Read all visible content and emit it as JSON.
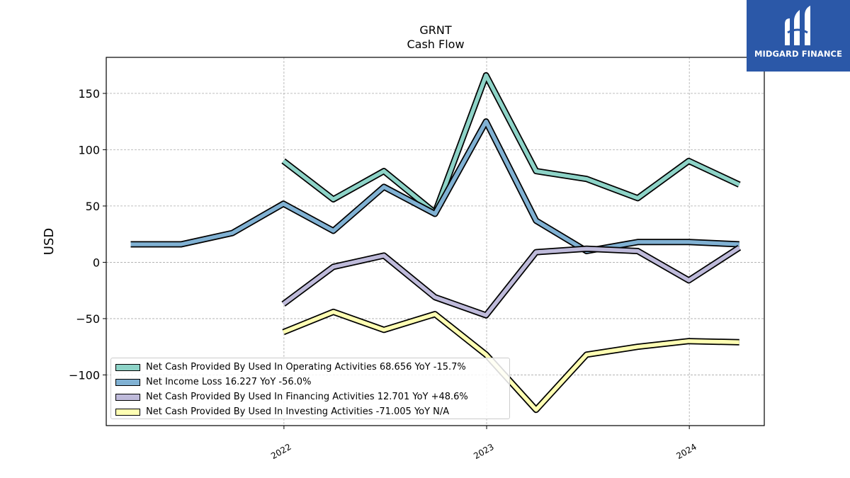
{
  "brand": {
    "logo_text": "MIDGARD FINANCE",
    "background_color": "#2b58a8",
    "icon": "midgard-logo-icon"
  },
  "chart_data": {
    "type": "line",
    "title": "GRNT",
    "subtitle": "Cash Flow",
    "xlabel": "",
    "ylabel": "USD",
    "x_ticks": [
      "2022",
      "2023",
      "2024"
    ],
    "y_ticks": [
      -100,
      -50,
      0,
      50,
      100,
      150
    ],
    "ylim": [
      -145,
      182
    ],
    "xlim": [
      "2021-02-15",
      "2024-05-15"
    ],
    "grid": true,
    "legend_position": "lower-left",
    "series": [
      {
        "name": "Net Cash Provided By Used In Operating Activities",
        "legend_label": "Net Cash Provided By Used In Operating Activities  68.656 YoY -15.7%",
        "color": "#8dd3c7",
        "x": [
          "2021-12-31",
          "2022-03-31",
          "2022-06-30",
          "2022-09-30",
          "2022-12-31",
          "2023-03-31",
          "2023-06-30",
          "2023-09-30",
          "2023-12-31",
          "2024-03-31"
        ],
        "y": [
          90,
          56,
          81,
          44,
          166,
          81,
          74,
          57,
          90,
          69
        ]
      },
      {
        "name": "Net Income Loss",
        "legend_label": "Net Income Loss  16.227 YoY -56.0%",
        "color": "#80b1d3",
        "x": [
          "2021-03-31",
          "2021-06-30",
          "2021-09-30",
          "2021-12-31",
          "2022-03-31",
          "2022-06-30",
          "2022-09-30",
          "2022-12-31",
          "2023-03-31",
          "2023-06-30",
          "2023-09-30",
          "2023-12-31",
          "2024-03-31"
        ],
        "y": [
          16,
          16,
          26,
          52,
          28,
          67,
          43,
          125,
          37,
          10,
          18,
          18,
          16
        ]
      },
      {
        "name": "Net Cash Provided By Used In Financing Activities",
        "legend_label": "Net Cash Provided By Used In Financing Activities  12.701 YoY +48.6%",
        "color": "#bebada",
        "x": [
          "2021-12-31",
          "2022-03-31",
          "2022-06-30",
          "2022-09-30",
          "2022-12-31",
          "2023-03-31",
          "2023-06-30",
          "2023-09-30",
          "2023-12-31",
          "2024-03-31"
        ],
        "y": [
          -37,
          -4,
          6,
          -31,
          -47,
          9,
          12,
          10,
          -16,
          13
        ]
      },
      {
        "name": "Net Cash Provided By Used In Investing Activities",
        "legend_label": "Net Cash Provided By Used In Investing Activities  -71.005 YoY N/A",
        "color": "#ffffb3",
        "x": [
          "2021-12-31",
          "2022-03-31",
          "2022-06-30",
          "2022-09-30",
          "2022-12-31",
          "2023-03-31",
          "2023-06-30",
          "2023-09-30",
          "2023-12-31",
          "2024-03-31"
        ],
        "y": [
          -62,
          -44,
          -60,
          -46,
          -82,
          -131,
          -82,
          -75,
          -70,
          -71
        ]
      }
    ]
  }
}
